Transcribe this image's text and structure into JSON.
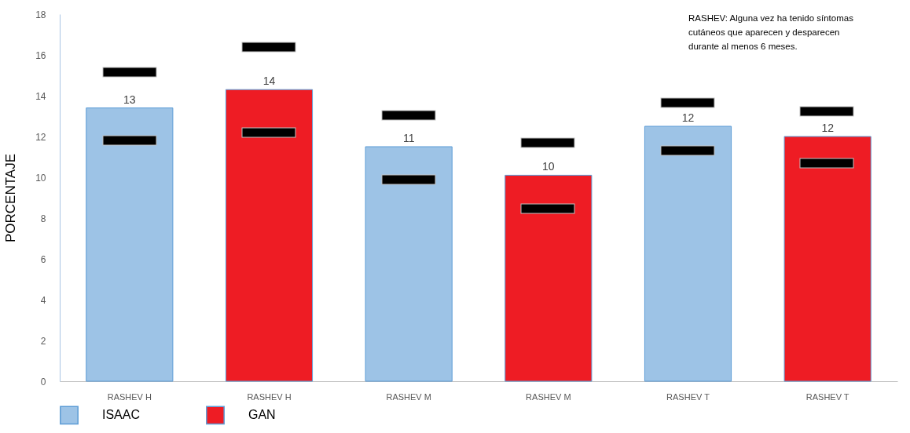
{
  "chart_data": {
    "type": "bar",
    "categories": [
      "RASHEV H",
      "RASHEV H",
      "RASHEV M",
      "RASHEV M",
      "RASHEV T",
      "RASHEV T"
    ],
    "ylabel": "PORCENTAJE",
    "ylim": [
      0,
      18
    ],
    "yticks": [
      0,
      2,
      4,
      6,
      8,
      10,
      12,
      14,
      16,
      18
    ],
    "grid": false,
    "legend": "bottom",
    "annotations": [
      "RASHEV: Alguna vez ha tenido síntomas cutáneos que aparecen y desparecen durante al menos 6 meses."
    ],
    "series": [
      {
        "name": "ISAAC",
        "color": "#9dc3e6",
        "values": [
          13.4,
          null,
          11.5,
          null,
          12.5,
          null
        ],
        "value_labels": [
          "13",
          null,
          "11",
          null,
          "12",
          null
        ]
      },
      {
        "name": "GAN",
        "color": "#ee1c24",
        "values": [
          null,
          14.3,
          null,
          10.1,
          null,
          12.0
        ],
        "value_labels": [
          null,
          "14",
          null,
          "10",
          null,
          "12"
        ]
      }
    ]
  }
}
